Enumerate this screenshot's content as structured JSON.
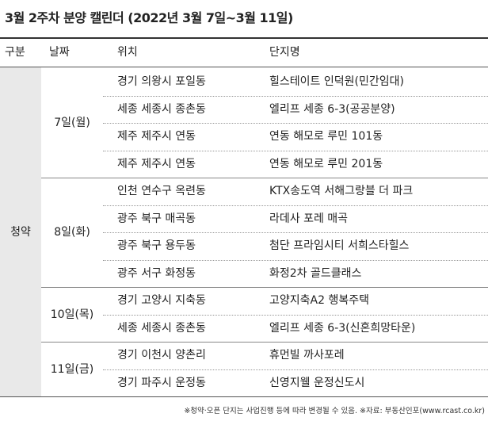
{
  "header": {
    "title": "3월 2주차 분양 캘린더 (2022년 3월 7일~3월 11일)"
  },
  "table": {
    "columns": [
      "구분",
      "날짜",
      "위치",
      "단지명"
    ],
    "category": "청약",
    "groups": [
      {
        "date": "7일(월)",
        "rows": [
          [
            "경기 의왕시 포일동",
            "힐스테이트 인덕원(민간임대)"
          ],
          [
            "세종 세종시 종촌동",
            "엘리프 세종 6-3(공공분양)"
          ],
          [
            "제주 제주시 연동",
            "연동 해모로 루민 101동"
          ],
          [
            "제주 제주시 연동",
            "연동 해모로 루민 201동"
          ]
        ]
      },
      {
        "date": "8일(화)",
        "rows": [
          [
            "인천 연수구 옥련동",
            "KTX송도역 서해그랑블 더 파크"
          ],
          [
            "광주 북구 매곡동",
            "라데사 포레 매곡"
          ],
          [
            "광주 북구 용두동",
            "첨단 프라임시티 서희스타힐스"
          ],
          [
            "광주 서구 화정동",
            "화정2차 골드클래스"
          ]
        ]
      },
      {
        "date": "10일(목)",
        "rows": [
          [
            "경기 고양시 지축동",
            "고양지축A2 행복주택"
          ],
          [
            "세종 세종시 종촌동",
            "엘리프 세종 6-3(신혼희망타운)"
          ]
        ]
      },
      {
        "date": "11일(금)",
        "rows": [
          [
            "경기 이천시 양촌리",
            "휴먼빌 까사포레"
          ],
          [
            "경기 파주시 운정동",
            "신영지웰 운정신도시"
          ]
        ]
      }
    ]
  },
  "footnote": "※청약·오픈 단지는 사업진행 등에 따라 변경될 수 있음. ※자료: 부동산인포(www.rcast.co.kr)"
}
